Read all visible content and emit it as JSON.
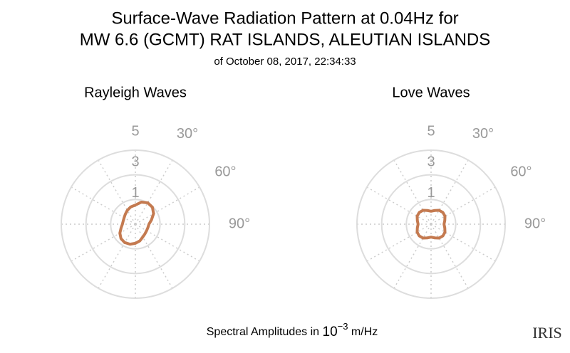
{
  "title": [
    "Surface-Wave Radiation Pattern at 0.04Hz for",
    "MW 6.6 (GCMT) RAT ISLANDS, ALEUTIAN ISLANDS"
  ],
  "subtitle": "of October 08, 2017, 22:34:33",
  "footer": {
    "text": "Spectral Amplitudes in ",
    "base": "10",
    "exponent": "−3",
    "unit": " m/Hz"
  },
  "logo": "IRIS",
  "chart_data": [
    {
      "type": "polar",
      "title": "Rayleigh Waves",
      "color": "#c47a50",
      "theta": [
        0,
        15,
        30,
        45,
        60,
        75,
        90,
        105,
        120,
        135,
        150,
        165,
        180,
        195,
        210,
        225,
        240,
        255,
        270,
        285,
        300,
        315,
        330,
        345
      ],
      "values": [
        0.55,
        0.85,
        1.0,
        0.95,
        0.7,
        0.35,
        0.1,
        0.05,
        0.05,
        0.1,
        0.2,
        0.4,
        0.55,
        0.68,
        0.72,
        0.65,
        0.45,
        0.2,
        0.05,
        0.02,
        0.05,
        0.15,
        0.3,
        0.45
      ],
      "rlim": [
        -1,
        5
      ],
      "rticks": [
        1,
        3,
        5
      ],
      "thetaticks": [
        {
          "value": 30,
          "label": "30°"
        },
        {
          "value": 60,
          "label": "60°"
        },
        {
          "value": 90,
          "label": "90°"
        }
      ]
    },
    {
      "type": "polar",
      "title": "Love Waves",
      "color": "#c47a50",
      "theta": [
        0,
        15,
        30,
        45,
        60,
        75,
        90,
        105,
        120,
        135,
        150,
        165,
        180,
        195,
        210,
        225,
        240,
        255,
        270,
        285,
        300,
        315,
        330,
        345
      ],
      "values": [
        0.05,
        0.15,
        0.3,
        0.35,
        0.3,
        0.15,
        0.05,
        0.15,
        0.3,
        0.35,
        0.3,
        0.15,
        0.05,
        0.15,
        0.3,
        0.35,
        0.3,
        0.15,
        0.05,
        0.15,
        0.3,
        0.35,
        0.3,
        0.15
      ],
      "rlim": [
        -1,
        5
      ],
      "rticks": [
        1,
        3,
        5
      ],
      "thetaticks": [
        {
          "value": 30,
          "label": "30°"
        },
        {
          "value": 60,
          "label": "60°"
        },
        {
          "value": 90,
          "label": "90°"
        }
      ]
    }
  ]
}
